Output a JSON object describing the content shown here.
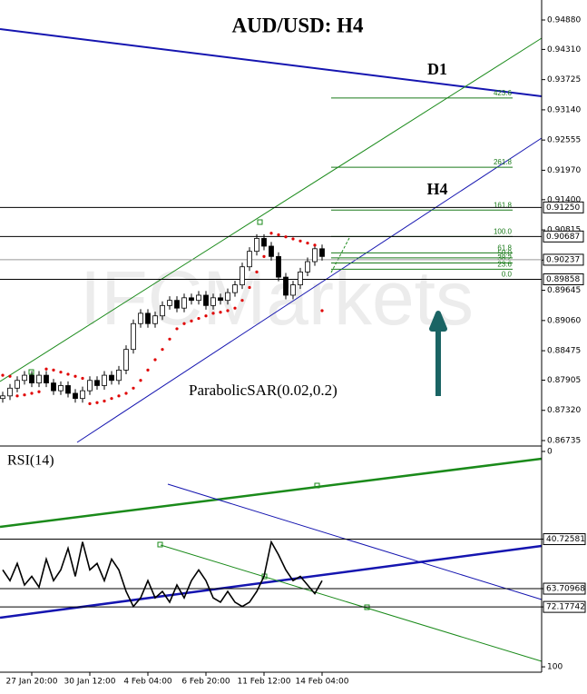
{
  "chart_data": [
    {
      "type": "candlestick",
      "title": "AUD/USD: H4",
      "annotations": [
        "D1",
        "H4"
      ],
      "watermark": "IFCMarkets",
      "ylim": [
        0.95267,
        0.86647
      ],
      "yticks": [
        {
          "value": 0.9488,
          "label": "0.94880"
        },
        {
          "value": 0.9431,
          "label": "0.94310"
        },
        {
          "value": 0.93725,
          "label": "0.93725"
        },
        {
          "value": 0.9314,
          "label": "0.93140"
        },
        {
          "value": 0.92555,
          "label": "0.92555"
        },
        {
          "value": 0.9197,
          "label": "0.91970"
        },
        {
          "value": 0.914,
          "label": "0.91400"
        },
        {
          "value": 0.90815,
          "label": "0.90815"
        },
        {
          "value": 0.9023,
          "label": "0.90230"
        },
        {
          "value": 0.89645,
          "label": "0.89645"
        },
        {
          "value": 0.8906,
          "label": "0.89060"
        },
        {
          "value": 0.88475,
          "label": "0.88475"
        },
        {
          "value": 0.87905,
          "label": "0.87905"
        },
        {
          "value": 0.8732,
          "label": "0.87320"
        },
        {
          "value": 0.86735,
          "label": "0.86735"
        }
      ],
      "levels": [
        {
          "value": 0.9125,
          "label": "0.91250",
          "color": "#000000"
        },
        {
          "value": 0.90687,
          "label": "0.90687",
          "color": "#000000"
        },
        {
          "value": 0.90237,
          "label": "0.90237",
          "color": "#999999"
        },
        {
          "value": 0.89858,
          "label": "0.89858",
          "color": "#000000"
        }
      ],
      "fib": {
        "color": "#1a7a1a",
        "ratios": [
          {
            "value": 423.6,
            "label": "423.6"
          },
          {
            "value": 261.8,
            "label": "261.8"
          },
          {
            "value": 161.8,
            "label": "161.8"
          },
          {
            "value": 100,
            "label": "100.0"
          },
          {
            "value": 61.8,
            "label": "61.8"
          },
          {
            "value": 50,
            "label": "50.0"
          },
          {
            "value": 38.2,
            "label": "38.2"
          },
          {
            "value": 23.6,
            "label": "23.6"
          },
          {
            "value": 0,
            "label": "0.0"
          }
        ]
      },
      "open": [
        0.8755,
        0.876,
        0.8775,
        0.879,
        0.88,
        0.8785,
        0.88,
        0.8785,
        0.877,
        0.878,
        0.8765,
        0.8755,
        0.877,
        0.879,
        0.878,
        0.88,
        0.879,
        0.881,
        0.885,
        0.89,
        0.892,
        0.89,
        0.8915,
        0.8935,
        0.8945,
        0.893,
        0.895,
        0.8945,
        0.8955,
        0.8935,
        0.895,
        0.8945,
        0.896,
        0.8975,
        0.901,
        0.904,
        0.9065,
        0.905,
        0.903,
        0.899,
        0.8955,
        0.8975,
        0.9,
        0.902,
        0.9045
      ],
      "high": [
        0.8768,
        0.8783,
        0.8798,
        0.8808,
        0.8808,
        0.8808,
        0.8808,
        0.8793,
        0.8788,
        0.8788,
        0.8773,
        0.8778,
        0.8798,
        0.8798,
        0.8808,
        0.8808,
        0.8818,
        0.8858,
        0.8908,
        0.8928,
        0.8928,
        0.8923,
        0.8943,
        0.8953,
        0.8953,
        0.8958,
        0.8958,
        0.8963,
        0.8963,
        0.8958,
        0.8958,
        0.8968,
        0.8983,
        0.9018,
        0.9048,
        0.9073,
        0.9073,
        0.9058,
        0.9038,
        0.8998,
        0.8983,
        0.9008,
        0.9028,
        0.9053,
        0.9053
      ],
      "low": [
        0.8747,
        0.8752,
        0.8767,
        0.8782,
        0.8777,
        0.8777,
        0.8777,
        0.8762,
        0.8762,
        0.8757,
        0.8747,
        0.8747,
        0.8762,
        0.8772,
        0.8772,
        0.8782,
        0.8782,
        0.8802,
        0.8842,
        0.8892,
        0.8892,
        0.8892,
        0.8907,
        0.8927,
        0.8922,
        0.8922,
        0.8937,
        0.8937,
        0.8927,
        0.8927,
        0.8937,
        0.8937,
        0.8952,
        0.8967,
        0.9002,
        0.9032,
        0.9042,
        0.9022,
        0.8982,
        0.8947,
        0.8947,
        0.8967,
        0.8992,
        0.9012,
        0.9022
      ],
      "close": [
        0.876,
        0.8775,
        0.879,
        0.88,
        0.8785,
        0.88,
        0.8785,
        0.877,
        0.878,
        0.8765,
        0.8755,
        0.877,
        0.879,
        0.878,
        0.88,
        0.879,
        0.881,
        0.885,
        0.89,
        0.892,
        0.89,
        0.8915,
        0.8935,
        0.8945,
        0.893,
        0.895,
        0.8945,
        0.8955,
        0.8935,
        0.895,
        0.8945,
        0.896,
        0.8975,
        0.901,
        0.904,
        0.9065,
        0.905,
        0.903,
        0.899,
        0.8955,
        0.8975,
        0.9,
        0.902,
        0.9045,
        0.903
      ],
      "series": [
        {
          "name": "ParabolicSAR(0.02,0.2)",
          "color": "#e00000",
          "values": [
            0.88,
            0.8798,
            0.876,
            0.8762,
            0.8765,
            0.8768,
            0.8812,
            0.881,
            0.8806,
            0.8802,
            0.8798,
            0.8794,
            0.8745,
            0.8747,
            0.875,
            0.8755,
            0.876,
            0.8765,
            0.8775,
            0.879,
            0.881,
            0.883,
            0.885,
            0.887,
            0.889,
            0.89,
            0.8905,
            0.891,
            0.8915,
            0.892,
            0.8922,
            0.8925,
            0.893,
            0.8945,
            0.897,
            0.9,
            0.903,
            0.9075,
            0.9072,
            0.9068,
            0.9064,
            0.906,
            0.9056,
            0.9052,
            0.8925
          ]
        }
      ]
    },
    {
      "type": "line",
      "ylim": [
        -2.1,
        102.5
      ],
      "yticks": [
        100,
        72.17742,
        63.70968,
        40.72581,
        0
      ],
      "categories": [
        null,
        null,
        null,
        null,
        "27 Jan 20:00",
        null,
        null,
        null,
        null,
        null,
        null,
        null,
        "30 Jan 12:00",
        null,
        null,
        null,
        null,
        null,
        null,
        null,
        "4 Feb 04:00",
        null,
        null,
        null,
        null,
        null,
        null,
        null,
        "6 Feb 20:00",
        null,
        null,
        null,
        null,
        null,
        null,
        null,
        "11 Feb 12:00",
        null,
        null,
        null,
        null,
        null,
        null,
        null,
        "14 Feb 04:00"
      ],
      "series": [
        {
          "name": "RSI(14)",
          "color": "#000000",
          "values": [
            55,
            60,
            52,
            62,
            58,
            63,
            50,
            60,
            55,
            45,
            58,
            42,
            55,
            52,
            60,
            50,
            55,
            65,
            72,
            68,
            60,
            68,
            65,
            70,
            62,
            68,
            60,
            55,
            60,
            68,
            70,
            65,
            70,
            72,
            70,
            65,
            58,
            42,
            48,
            55,
            60,
            58,
            62,
            66,
            60
          ]
        }
      ]
    }
  ]
}
